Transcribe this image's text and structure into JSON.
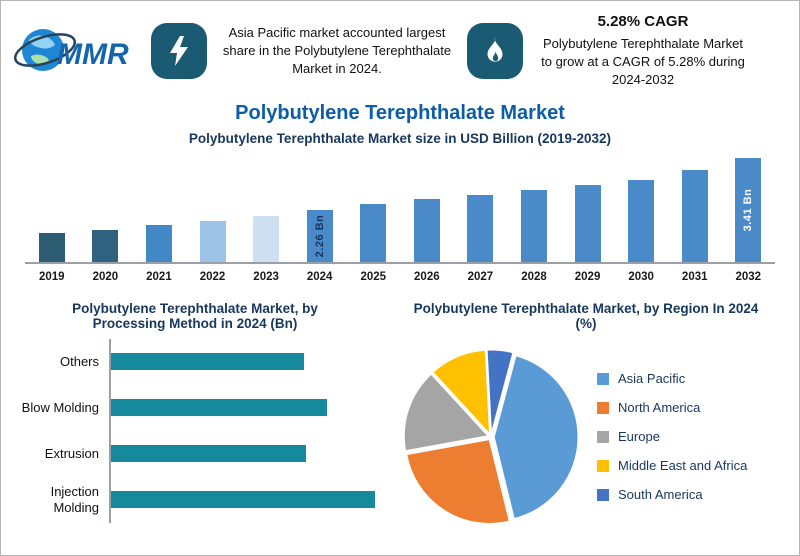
{
  "header": {
    "logo_text": "MMR",
    "highlight1": "Asia Pacific market accounted largest share in the Polybutylene Terephthalate Market in 2024.",
    "cagr_title": "5.28% CAGR",
    "cagr_text": "Polybutylene Terephthalate Market to grow at a CAGR of 5.28% during 2024-2032"
  },
  "page_title": "Polybutylene Terephthalate Market",
  "colors": {
    "icon_box": "#1a5a72",
    "main_title": "#0d5ca6",
    "chart_title": "#17375e",
    "axis": "#9aa0a6"
  },
  "chart_data": [
    {
      "type": "bar",
      "title": "Polybutylene Terephthalate Market size in USD Billion (2019-2032)",
      "categories": [
        "2019",
        "2020",
        "2021",
        "2022",
        "2023",
        "2024",
        "2025",
        "2026",
        "2027",
        "2028",
        "2029",
        "2030",
        "2031",
        "2032"
      ],
      "values": [
        1.75,
        1.82,
        1.93,
        2.02,
        2.12,
        2.26,
        2.38,
        2.5,
        2.58,
        2.7,
        2.8,
        2.92,
        3.15,
        3.41
      ],
      "bar_colors": [
        "#2c5d72",
        "#2f6280",
        "#4288c4",
        "#9dc3e6",
        "#cfdff2",
        "#4a8ac9",
        "#4a8ac9",
        "#4a8ac9",
        "#4a8ac9",
        "#4a8ac9",
        "#4a8ac9",
        "#4a8ac9",
        "#4a8ac9",
        "#4a8ac9"
      ],
      "annotations": [
        {
          "category": "2024",
          "text": "2.26 Bn",
          "color": "#17375e"
        },
        {
          "category": "2032",
          "text": "3.41 Bn",
          "color": "#ffffff"
        }
      ],
      "ylabel": "USD Billion",
      "grid": false
    },
    {
      "type": "bar-horizontal",
      "title": "Polybutylene Terephthalate Market, by Processing Method in 2024 (Bn)",
      "categories": [
        "Others",
        "Blow Molding",
        "Extrusion",
        "Injection Molding"
      ],
      "values_relative": [
        73,
        82,
        74,
        100
      ],
      "color": "#17899d"
    },
    {
      "type": "pie",
      "title": "Polybutylene Terephthalate Market, by Region In 2024 (%)",
      "legend_position": "right",
      "slices": [
        {
          "label": "Asia Pacific",
          "value": 42,
          "color": "#5B9BD5"
        },
        {
          "label": "North America",
          "value": 26,
          "color": "#ED7D31"
        },
        {
          "label": "Europe",
          "value": 16,
          "color": "#A5A5A5"
        },
        {
          "label": "Middle East and Africa",
          "value": 11,
          "color": "#FFC000"
        },
        {
          "label": "South America",
          "value": 5,
          "color": "#4472C4"
        }
      ]
    }
  ]
}
